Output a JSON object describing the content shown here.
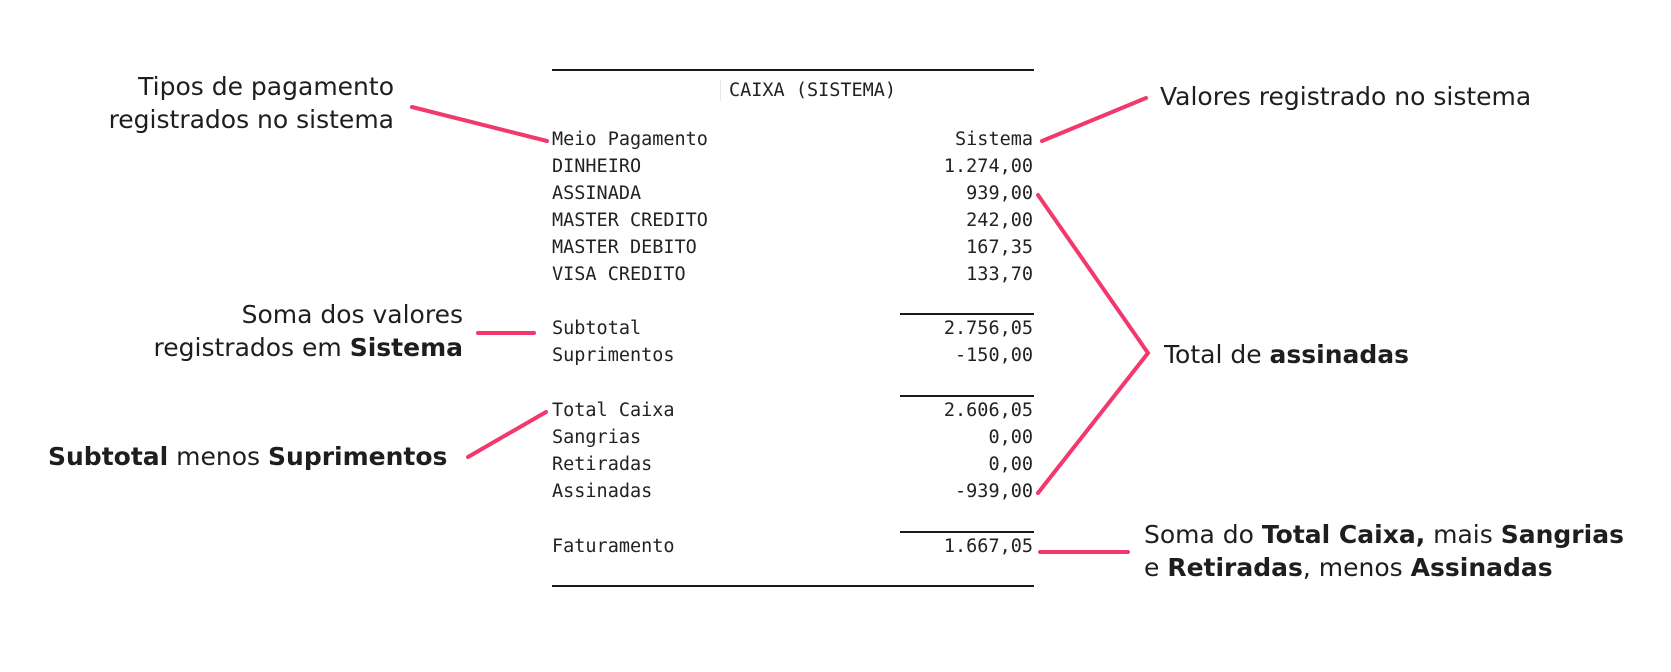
{
  "receipt": {
    "title": "CAIXA (SISTEMA)",
    "header": {
      "label": "Meio Pagamento",
      "value": "Sistema"
    },
    "payments": [
      {
        "label": "DINHEIRO",
        "value": "1.274,00"
      },
      {
        "label": "ASSINADA",
        "value": "939,00"
      },
      {
        "label": "MASTER CREDITO",
        "value": "242,00"
      },
      {
        "label": "MASTER DEBITO",
        "value": "167,35"
      },
      {
        "label": "VISA CREDITO",
        "value": "133,70"
      }
    ],
    "subtotal": {
      "label": "Subtotal",
      "value": "2.756,05"
    },
    "suprimentos": {
      "label": "Suprimentos",
      "value": "-150,00"
    },
    "total_caixa": {
      "label": "Total Caixa",
      "value": "2.606,05"
    },
    "sangrias": {
      "label": "Sangrias",
      "value": "0,00"
    },
    "retiradas": {
      "label": "Retiradas",
      "value": "0,00"
    },
    "assinadas": {
      "label": "Assinadas",
      "value": "-939,00"
    },
    "faturamento": {
      "label": "Faturamento",
      "value": "1.667,05"
    }
  },
  "annotations": {
    "tipos_pagamento": {
      "line1": "Tipos de pagamento",
      "line2": "registrados no sistema"
    },
    "valores_registrados": "Valores registrado no sistema",
    "soma_valores": {
      "line1": "Soma dos valores",
      "line2_prefix": "registrados em ",
      "line2_em": "Sistema"
    },
    "subtotal_menos": {
      "em1": "Subtotal",
      "mid": " menos ",
      "em2": "Suprimentos"
    },
    "total_assinadas": {
      "prefix": "Total de ",
      "em": "assinadas"
    },
    "faturamento_note": {
      "l1_prefix": "Soma do ",
      "l1_em1": "Total Caixa,",
      "l1_mid": " mais ",
      "l1_em2": "Sangrias",
      "l2_prefix": "e ",
      "l2_em1": "Retiradas",
      "l2_mid": ", menos ",
      "l2_em2": "Assinadas"
    }
  },
  "colors": {
    "accent_line": "#f2386d",
    "receipt_rule": "#1a1a1a"
  }
}
